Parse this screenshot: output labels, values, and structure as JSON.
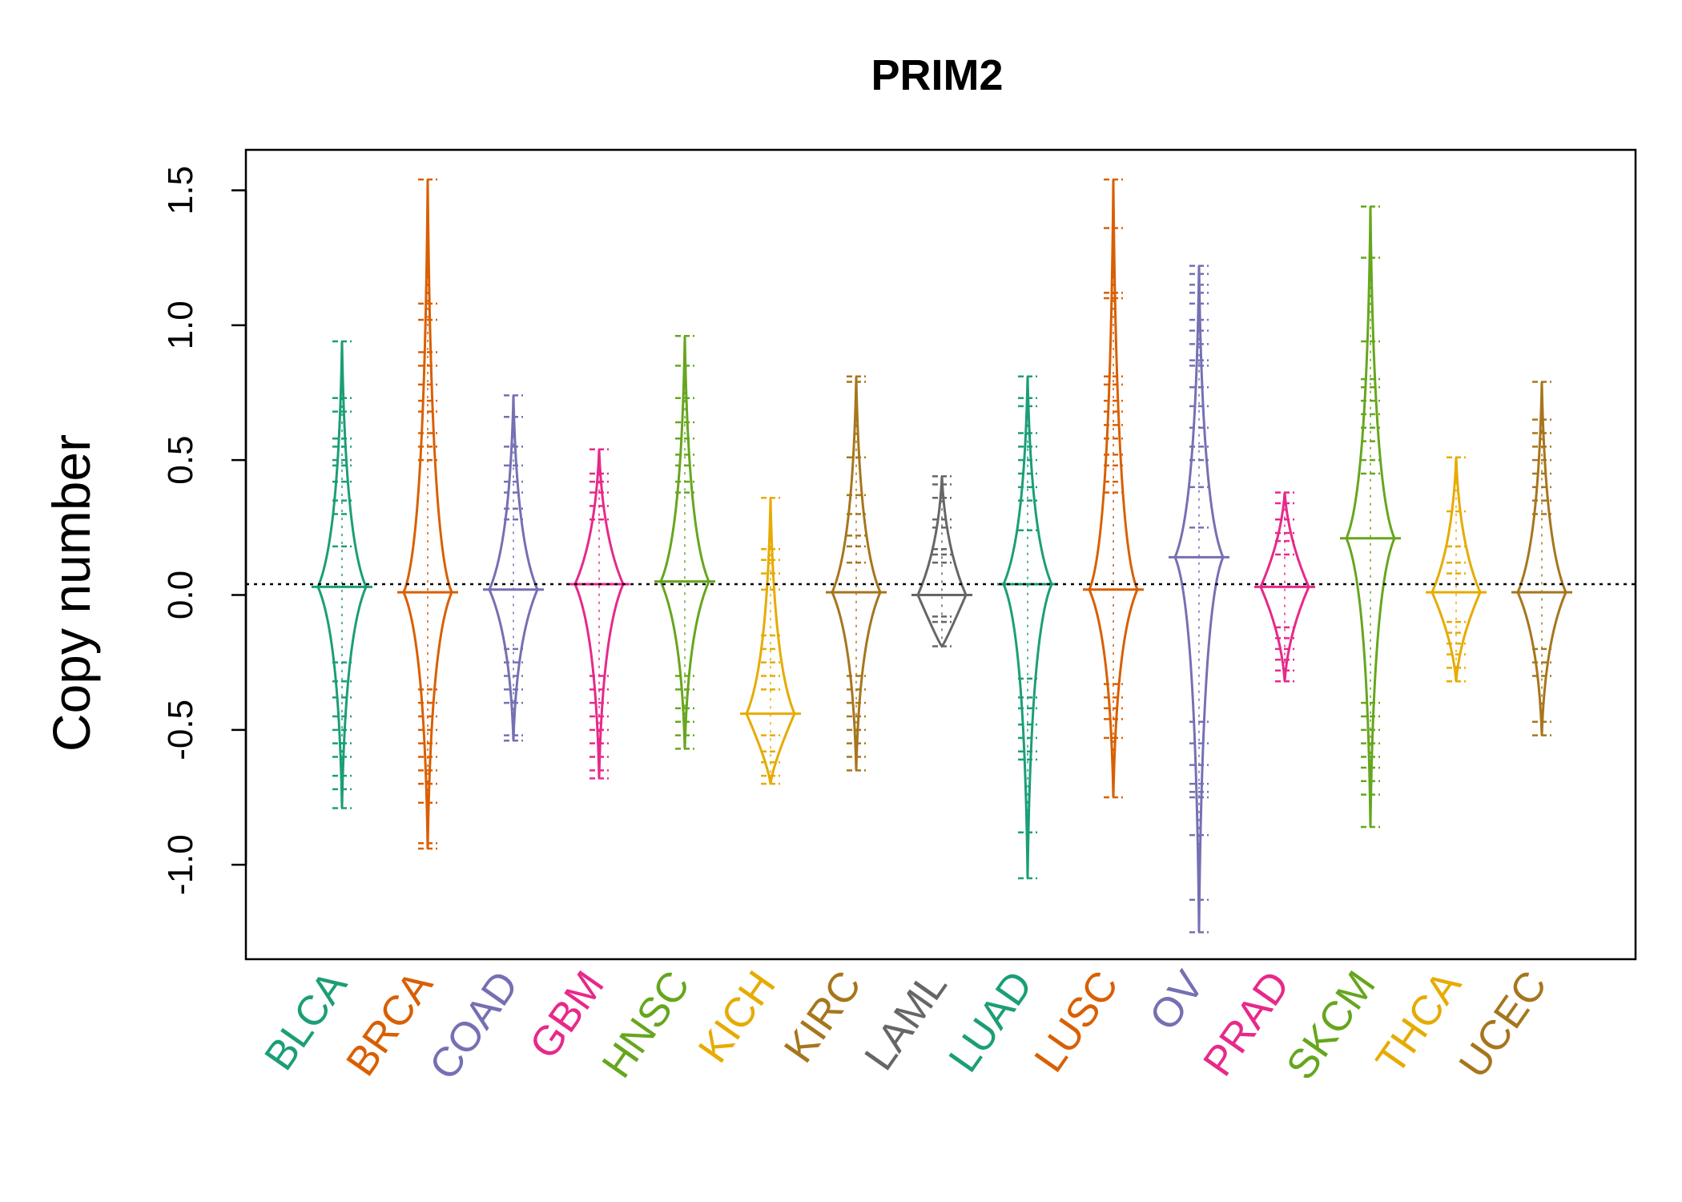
{
  "chart_data": {
    "type": "beanplot",
    "title": "PRIM2",
    "xlabel": "",
    "ylabel": "Copy number",
    "ylim": [
      -1.35,
      1.65
    ],
    "yticks": [
      -1.0,
      -0.5,
      0.0,
      0.5,
      1.0,
      1.5
    ],
    "ytick_labels": [
      "-1.0",
      "-0.5",
      "0.0",
      "0.5",
      "1.0",
      "1.5"
    ],
    "reference_line": 0.04,
    "grid": false,
    "categories": [
      "BLCA",
      "BRCA",
      "COAD",
      "GBM",
      "HNSC",
      "KICH",
      "KIRC",
      "LAML",
      "LUAD",
      "LUSC",
      "OV",
      "PRAD",
      "SKCM",
      "THCA",
      "UCEC"
    ],
    "colors": [
      "#1B9E77",
      "#D95F02",
      "#7570B3",
      "#E7298A",
      "#66A61E",
      "#E6AB02",
      "#A6761D",
      "#666666",
      "#1B9E77",
      "#D95F02",
      "#7570B3",
      "#E7298A",
      "#66A61E",
      "#E6AB02",
      "#A6761D"
    ],
    "series": [
      {
        "name": "BLCA",
        "mean": 0.03,
        "min": -0.79,
        "max": 0.94,
        "points": [
          0.94,
          0.73,
          0.68,
          0.58,
          0.55,
          0.5,
          0.48,
          0.42,
          0.35,
          0.3,
          0.18,
          -0.25,
          -0.32,
          -0.38,
          -0.45,
          -0.5,
          -0.55,
          -0.6,
          -0.67,
          -0.72,
          -0.79
        ]
      },
      {
        "name": "BRCA",
        "mean": 0.01,
        "min": -0.94,
        "max": 1.54,
        "points": [
          1.54,
          1.08,
          1.02,
          0.9,
          0.85,
          0.78,
          0.72,
          0.68,
          0.6,
          0.55,
          0.5,
          -0.35,
          -0.4,
          -0.45,
          -0.5,
          -0.55,
          -0.6,
          -0.65,
          -0.7,
          -0.77,
          -0.92,
          -0.94
        ]
      },
      {
        "name": "COAD",
        "mean": 0.02,
        "min": -0.54,
        "max": 0.74,
        "points": [
          0.74,
          0.66,
          0.55,
          0.48,
          0.42,
          0.38,
          0.32,
          0.28,
          -0.2,
          -0.25,
          -0.3,
          -0.35,
          -0.4,
          -0.52,
          -0.54
        ]
      },
      {
        "name": "GBM",
        "mean": 0.04,
        "min": -0.68,
        "max": 0.54,
        "points": [
          0.54,
          0.45,
          0.42,
          0.38,
          0.33,
          0.28,
          -0.3,
          -0.35,
          -0.4,
          -0.45,
          -0.5,
          -0.55,
          -0.6,
          -0.65,
          -0.68
        ]
      },
      {
        "name": "HNSC",
        "mean": 0.05,
        "min": -0.57,
        "max": 0.96,
        "points": [
          0.96,
          0.85,
          0.73,
          0.64,
          0.58,
          0.52,
          0.48,
          0.42,
          0.38,
          -0.3,
          -0.35,
          -0.42,
          -0.47,
          -0.52,
          -0.57
        ]
      },
      {
        "name": "KICH",
        "mean": -0.44,
        "min": -0.7,
        "max": 0.36,
        "points": [
          0.36,
          0.17,
          0.13,
          0.08,
          0.02,
          -0.15,
          -0.2,
          -0.25,
          -0.3,
          -0.35,
          -0.52,
          -0.58,
          -0.62,
          -0.67,
          -0.7
        ]
      },
      {
        "name": "KIRC",
        "mean": 0.01,
        "min": -0.65,
        "max": 0.81,
        "points": [
          0.81,
          0.79,
          0.51,
          0.37,
          0.3,
          0.22,
          0.18,
          0.12,
          -0.3,
          -0.35,
          -0.4,
          -0.45,
          -0.5,
          -0.55,
          -0.6,
          -0.65
        ]
      },
      {
        "name": "LAML",
        "mean": 0.0,
        "min": -0.19,
        "max": 0.44,
        "points": [
          0.44,
          0.41,
          0.36,
          0.28,
          0.25,
          0.17,
          0.15,
          0.12,
          -0.08,
          -0.1,
          -0.19
        ]
      },
      {
        "name": "LUAD",
        "mean": 0.04,
        "min": -1.05,
        "max": 0.81,
        "points": [
          0.81,
          0.73,
          0.7,
          0.6,
          0.55,
          0.5,
          0.45,
          0.4,
          0.35,
          0.24,
          -0.31,
          -0.38,
          -0.42,
          -0.48,
          -0.53,
          -0.58,
          -0.61,
          -0.88,
          -1.05
        ]
      },
      {
        "name": "LUSC",
        "mean": 0.02,
        "min": -0.75,
        "max": 1.54,
        "points": [
          1.54,
          1.36,
          1.12,
          1.1,
          0.81,
          0.78,
          0.72,
          0.68,
          0.63,
          0.58,
          0.52,
          0.48,
          0.42,
          0.38,
          -0.33,
          -0.38,
          -0.42,
          -0.46,
          -0.53,
          -0.75
        ]
      },
      {
        "name": "OV",
        "mean": 0.14,
        "min": -1.25,
        "max": 1.22,
        "points": [
          1.22,
          1.19,
          1.15,
          1.12,
          1.08,
          1.02,
          0.98,
          0.93,
          0.87,
          0.85,
          0.77,
          0.7,
          0.62,
          0.55,
          0.5,
          0.4,
          0.25,
          -0.47,
          -0.55,
          -0.63,
          -0.7,
          -0.73,
          -0.75,
          -0.89,
          -1.13,
          -1.25
        ]
      },
      {
        "name": "PRAD",
        "mean": 0.03,
        "min": -0.32,
        "max": 0.38,
        "points": [
          0.38,
          0.34,
          0.28,
          0.23,
          0.2,
          0.15,
          -0.12,
          -0.16,
          -0.2,
          -0.24,
          -0.28,
          -0.32
        ]
      },
      {
        "name": "SKCM",
        "mean": 0.21,
        "min": -0.86,
        "max": 1.44,
        "points": [
          1.44,
          1.25,
          0.94,
          0.8,
          0.77,
          0.72,
          0.67,
          0.62,
          0.57,
          0.5,
          0.45,
          -0.4,
          -0.45,
          -0.5,
          -0.55,
          -0.6,
          -0.64,
          -0.69,
          -0.74,
          -0.86
        ]
      },
      {
        "name": "THCA",
        "mean": 0.01,
        "min": -0.32,
        "max": 0.51,
        "points": [
          0.51,
          0.31,
          0.18,
          0.12,
          0.08,
          -0.1,
          -0.14,
          -0.18,
          -0.22,
          -0.27,
          -0.32
        ]
      },
      {
        "name": "UCEC",
        "mean": 0.01,
        "min": -0.52,
        "max": 0.79,
        "points": [
          0.79,
          0.65,
          0.6,
          0.55,
          0.5,
          0.45,
          0.4,
          0.35,
          0.3,
          -0.2,
          -0.25,
          -0.3,
          -0.47,
          -0.52
        ]
      }
    ]
  }
}
